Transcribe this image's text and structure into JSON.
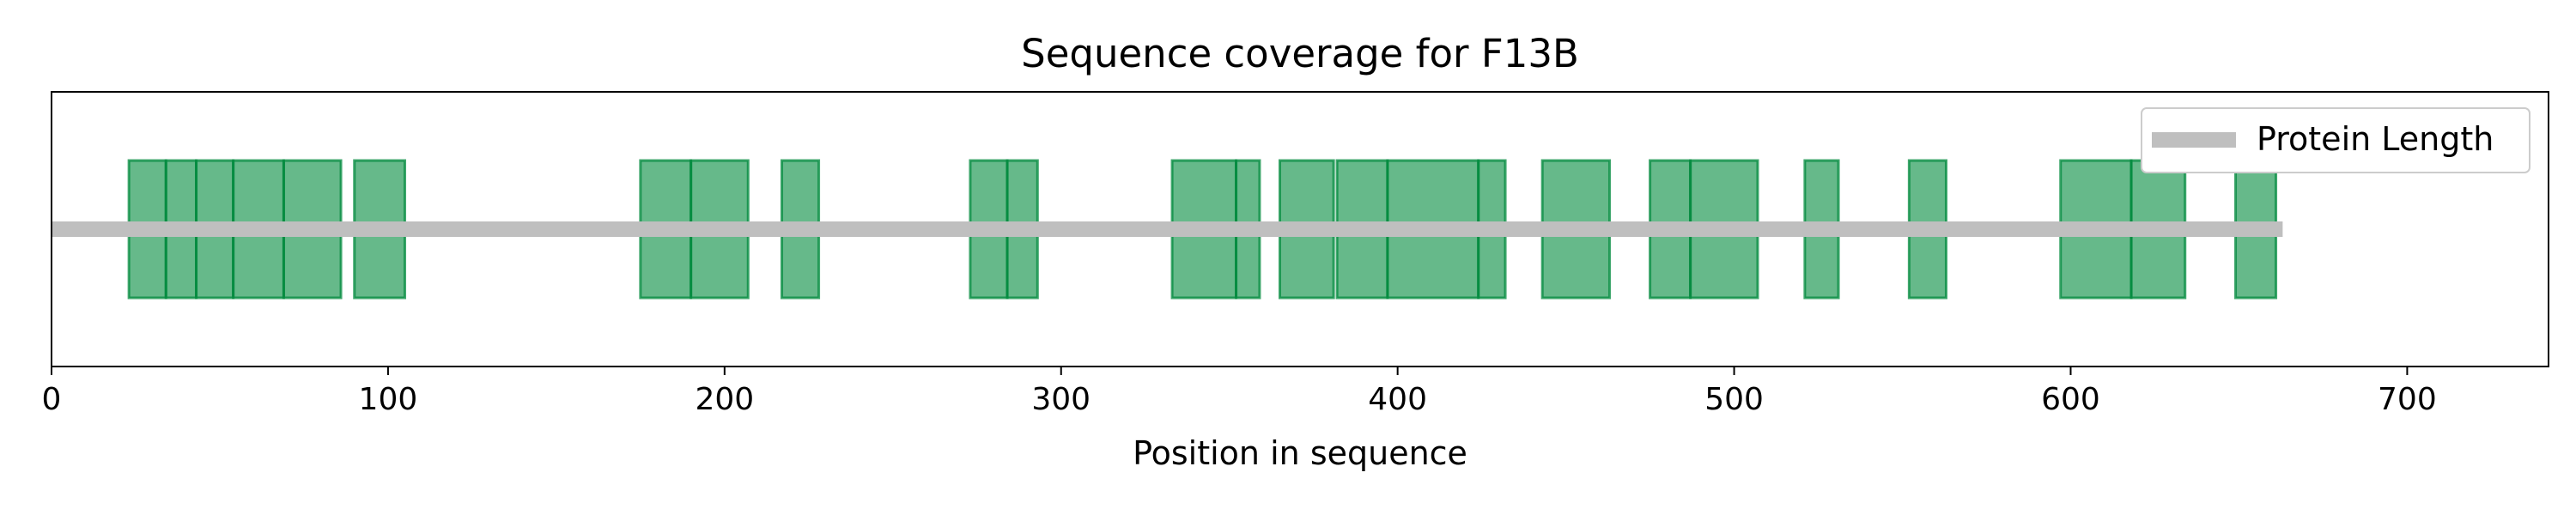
{
  "chart_data": {
    "type": "bar",
    "title": "Sequence coverage for F13B",
    "xlabel": "Position in sequence",
    "ylabel": "",
    "xlim": [
      0,
      742
    ],
    "xticks": [
      0,
      100,
      200,
      300,
      400,
      500,
      600,
      700
    ],
    "grid": false,
    "legend": {
      "position": "top-right",
      "entries": [
        "Protein Length"
      ]
    },
    "protein_length": {
      "name": "Protein Length",
      "start": 0,
      "end": 663
    },
    "peptides": [
      [
        23,
        34
      ],
      [
        34,
        43
      ],
      [
        43,
        54
      ],
      [
        54,
        69
      ],
      [
        69,
        86
      ],
      [
        90,
        105
      ],
      [
        175,
        190
      ],
      [
        190,
        207
      ],
      [
        217,
        228
      ],
      [
        273,
        284
      ],
      [
        284,
        293
      ],
      [
        333,
        352
      ],
      [
        352,
        359
      ],
      [
        365,
        381
      ],
      [
        382,
        397
      ],
      [
        397,
        424
      ],
      [
        424,
        432
      ],
      [
        443,
        463
      ],
      [
        475,
        487
      ],
      [
        487,
        507
      ],
      [
        521,
        531
      ],
      [
        552,
        563
      ],
      [
        597,
        618
      ],
      [
        618,
        634
      ],
      [
        649,
        661
      ]
    ],
    "colors": {
      "coverage": "#008a3c",
      "protein": "#bfbfbf",
      "axis": "#000000"
    }
  }
}
